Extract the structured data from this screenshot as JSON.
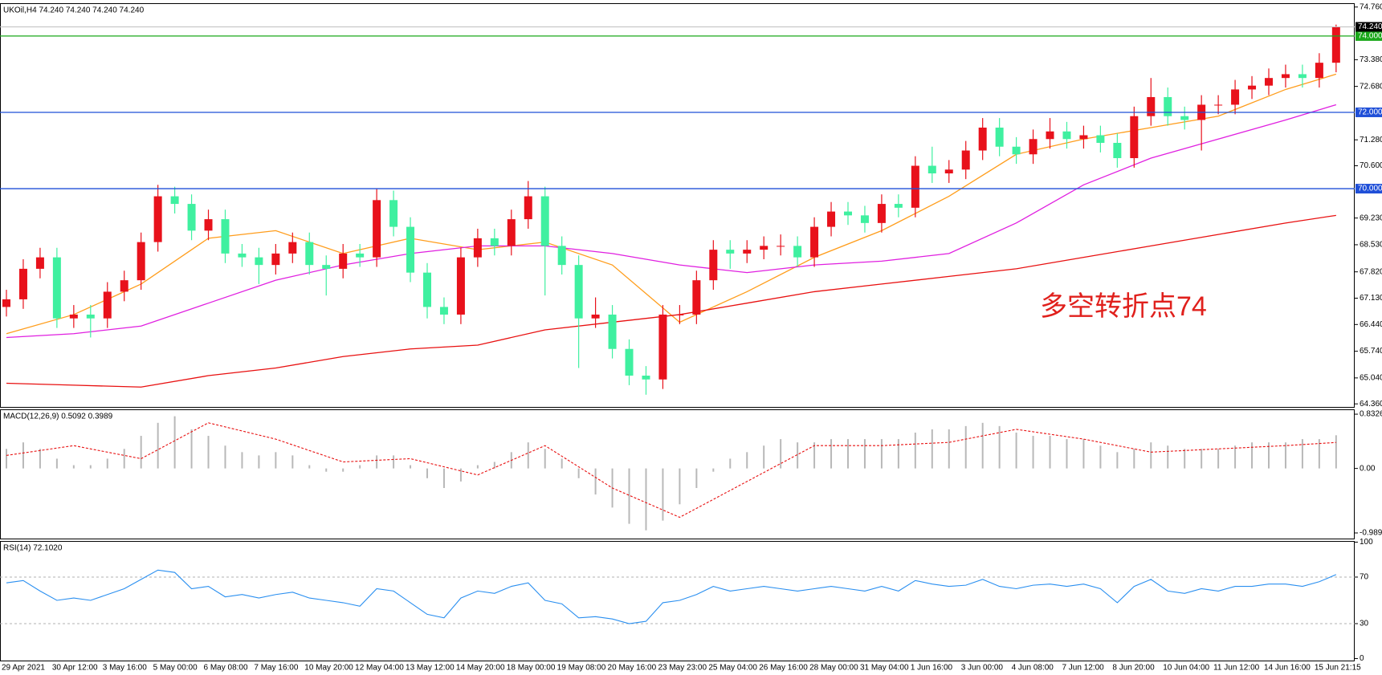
{
  "chart_data": [
    {
      "type": "candlestick",
      "title": "UKOil,H4  74.240 74.240 74.240 74.240",
      "categories": [
        "29 Apr 2021",
        null,
        null,
        "30 Apr 12:00",
        null,
        null,
        "3 May 16:00",
        null,
        null,
        "5 May 00:00",
        null,
        null,
        "6 May 08:00",
        null,
        null,
        "7 May 16:00",
        null,
        null,
        "10 May 20:00",
        null,
        null,
        "12 May 04:00",
        null,
        null,
        "13 May 12:00",
        null,
        null,
        "14 May 20:00",
        null,
        null,
        "18 May 00:00",
        null,
        null,
        "19 May 08:00",
        null,
        null,
        "20 May 16:00",
        null,
        null,
        "23 May 23:00",
        null,
        null,
        "25 May 04:00",
        null,
        null,
        "26 May 16:00",
        null,
        null,
        "28 May 00:00",
        null,
        null,
        "31 May 04:00",
        null,
        null,
        "1 Jun 16:00",
        null,
        null,
        "3 Jun 00:00",
        null,
        null,
        "4 Jun 08:00",
        null,
        null,
        "7 Jun 12:00",
        null,
        null,
        "8 Jun 20:00",
        null,
        null,
        "10 Jun 04:00",
        null,
        null,
        "11 Jun 12:00",
        null,
        null,
        "14 Jun 16:00",
        null,
        null,
        "15 Jun 21:15",
        null
      ],
      "open": [
        66.9,
        67.1,
        67.9,
        68.2,
        66.6,
        66.7,
        66.6,
        67.3,
        67.6,
        68.6,
        69.8,
        69.6,
        68.9,
        69.2,
        68.3,
        68.2,
        68.0,
        68.3,
        68.6,
        68.0,
        67.9,
        68.3,
        68.2,
        69.7,
        69.0,
        67.8,
        66.9,
        66.7,
        68.2,
        68.7,
        68.5,
        69.2,
        69.8,
        68.5,
        68.0,
        66.6,
        66.7,
        65.8,
        65.1,
        65.0,
        66.7,
        66.7,
        67.6,
        68.4,
        68.3,
        68.4,
        68.5,
        68.5,
        68.2,
        69.0,
        69.4,
        69.3,
        69.1,
        69.6,
        69.5,
        70.6,
        70.4,
        70.5,
        71.0,
        71.6,
        71.1,
        70.9,
        71.3,
        71.5,
        71.3,
        71.4,
        71.2,
        70.8,
        71.9,
        72.4,
        71.9,
        71.8,
        72.2,
        72.2,
        72.6,
        72.7,
        72.9,
        73.0,
        72.9,
        73.3
      ],
      "high": [
        67.35,
        68.15,
        68.45,
        68.45,
        66.95,
        66.95,
        67.55,
        67.85,
        68.85,
        70.1,
        70.05,
        69.85,
        69.45,
        69.45,
        68.55,
        68.45,
        68.55,
        68.85,
        68.85,
        68.25,
        68.55,
        68.55,
        70.0,
        69.95,
        69.25,
        68.05,
        67.15,
        68.45,
        68.95,
        68.95,
        69.45,
        70.2,
        70.05,
        68.75,
        68.25,
        67.15,
        66.95,
        66.05,
        65.35,
        66.95,
        66.95,
        67.85,
        68.65,
        68.65,
        68.65,
        68.75,
        68.8,
        68.75,
        69.25,
        69.65,
        69.65,
        69.55,
        69.85,
        69.85,
        70.85,
        71.1,
        70.75,
        71.25,
        71.85,
        71.85,
        71.35,
        71.55,
        71.85,
        71.75,
        71.65,
        71.65,
        71.45,
        72.15,
        72.9,
        72.65,
        72.15,
        72.45,
        72.45,
        72.85,
        72.95,
        73.15,
        73.25,
        73.25,
        73.55,
        74.3
      ],
      "low": [
        66.65,
        66.85,
        67.65,
        66.35,
        66.35,
        66.1,
        66.35,
        67.05,
        67.35,
        68.35,
        69.35,
        68.65,
        68.65,
        68.05,
        67.95,
        67.5,
        67.75,
        68.05,
        67.75,
        67.2,
        67.65,
        67.95,
        67.95,
        68.75,
        67.55,
        66.6,
        66.45,
        66.45,
        67.95,
        68.25,
        68.25,
        68.95,
        67.2,
        67.75,
        65.3,
        66.35,
        65.55,
        64.85,
        64.6,
        64.75,
        66.45,
        66.45,
        67.35,
        67.9,
        68.05,
        68.15,
        68.25,
        67.95,
        67.95,
        68.75,
        69.05,
        68.85,
        68.85,
        69.25,
        69.25,
        70.15,
        70.15,
        70.25,
        70.75,
        70.85,
        70.65,
        70.65,
        71.05,
        71.05,
        71.05,
        70.95,
        70.55,
        70.55,
        71.65,
        71.65,
        71.55,
        71.0,
        71.95,
        71.95,
        72.35,
        72.45,
        72.65,
        72.65,
        72.65,
        73.05
      ],
      "close": [
        67.1,
        67.9,
        68.2,
        66.6,
        66.7,
        66.6,
        67.3,
        67.6,
        68.6,
        69.8,
        69.6,
        68.9,
        69.2,
        68.3,
        68.2,
        68.0,
        68.3,
        68.6,
        68.0,
        67.9,
        68.3,
        68.2,
        69.7,
        69.0,
        67.8,
        66.9,
        66.7,
        68.2,
        68.7,
        68.5,
        69.2,
        69.8,
        68.5,
        68.0,
        66.6,
        66.7,
        65.8,
        65.1,
        65.0,
        66.7,
        66.7,
        67.6,
        68.4,
        68.3,
        68.4,
        68.5,
        68.5,
        68.2,
        69.0,
        69.4,
        69.3,
        69.1,
        69.6,
        69.5,
        70.6,
        70.4,
        70.5,
        71.0,
        71.6,
        71.1,
        70.9,
        71.3,
        71.5,
        71.3,
        71.4,
        71.2,
        70.8,
        71.9,
        72.4,
        71.9,
        71.8,
        72.2,
        72.2,
        72.6,
        72.7,
        72.9,
        73.0,
        72.9,
        73.3,
        74.24
      ],
      "up_color": "#e8111b",
      "down_color": "#3ff0a0",
      "lines": [
        {
          "color": "#ff9d1c",
          "x": [
            0,
            4,
            8,
            12,
            16,
            20,
            24,
            28,
            32,
            36,
            40,
            44,
            48,
            52,
            56,
            60,
            64,
            68,
            72,
            76,
            79
          ],
          "values": [
            66.2,
            66.7,
            67.5,
            68.7,
            68.9,
            68.3,
            68.7,
            68.4,
            68.6,
            68.0,
            66.5,
            67.3,
            68.2,
            68.9,
            69.8,
            70.9,
            71.3,
            71.6,
            71.9,
            72.6,
            73.0
          ]
        },
        {
          "color": "#e020e0",
          "x": [
            0,
            4,
            8,
            12,
            16,
            20,
            24,
            28,
            32,
            36,
            40,
            44,
            48,
            52,
            56,
            60,
            64,
            68,
            72,
            76,
            79
          ],
          "values": [
            66.1,
            66.2,
            66.4,
            67.0,
            67.6,
            68.0,
            68.3,
            68.5,
            68.5,
            68.3,
            68.0,
            67.8,
            68.0,
            68.1,
            68.3,
            69.1,
            70.1,
            70.8,
            71.3,
            71.8,
            72.2
          ]
        },
        {
          "color": "#e81010",
          "x": [
            0,
            4,
            8,
            12,
            16,
            20,
            24,
            28,
            32,
            36,
            40,
            44,
            48,
            52,
            56,
            60,
            64,
            68,
            72,
            76,
            79
          ],
          "values": [
            64.9,
            64.85,
            64.8,
            65.1,
            65.3,
            65.6,
            65.8,
            65.9,
            66.3,
            66.5,
            66.7,
            67.0,
            67.3,
            67.5,
            67.7,
            67.9,
            68.2,
            68.5,
            68.8,
            69.1,
            69.3
          ]
        }
      ],
      "ylim": [
        64.28,
        74.86
      ],
      "yticks": [
        {
          "value": 74.76,
          "label": "74.760"
        },
        {
          "value": 73.38,
          "label": "73.380"
        },
        {
          "value": 72.68,
          "label": "72.680"
        },
        {
          "value": 71.28,
          "label": "71.280"
        },
        {
          "value": 70.6,
          "label": "70.600"
        },
        {
          "value": 69.23,
          "label": "69.230"
        },
        {
          "value": 68.53,
          "label": "68.530"
        },
        {
          "value": 67.82,
          "label": "67.820"
        },
        {
          "value": 67.13,
          "label": "67.130"
        },
        {
          "value": 66.44,
          "label": "66.440"
        },
        {
          "value": 65.74,
          "label": "65.740"
        },
        {
          "value": 65.04,
          "label": "65.040"
        },
        {
          "value": 64.36,
          "label": "64.360"
        }
      ],
      "levels": [
        {
          "value": 74,
          "label": "74.000",
          "color": "#1aa81a"
        },
        {
          "value": 72,
          "label": "72.000",
          "color": "#1f4fd8"
        },
        {
          "value": 70,
          "label": "70.000",
          "color": "#1f4fd8"
        }
      ],
      "current_price": {
        "value": 74.24,
        "label": "74.240",
        "color": "#000000"
      },
      "annotation": {
        "text": "多空转折点74",
        "color": "#e0201c"
      }
    },
    {
      "type": "macd",
      "title": "MACD(12,26,9) 0.5092 0.3989",
      "histogram": [
        0.3,
        0.4,
        0.3,
        0.15,
        0.05,
        0.05,
        0.15,
        0.3,
        0.5,
        0.7,
        0.8,
        0.6,
        0.5,
        0.35,
        0.25,
        0.2,
        0.25,
        0.2,
        0.05,
        -0.05,
        -0.05,
        0.05,
        0.2,
        0.2,
        0.05,
        -0.15,
        -0.3,
        -0.2,
        0.05,
        0.1,
        0.25,
        0.4,
        0.3,
        0.15,
        -0.15,
        -0.4,
        -0.6,
        -0.85,
        -0.95,
        -0.8,
        -0.55,
        -0.3,
        -0.05,
        0.15,
        0.25,
        0.35,
        0.45,
        0.4,
        0.4,
        0.45,
        0.45,
        0.45,
        0.45,
        0.45,
        0.55,
        0.6,
        0.6,
        0.65,
        0.7,
        0.65,
        0.55,
        0.5,
        0.5,
        0.45,
        0.45,
        0.35,
        0.25,
        0.3,
        0.4,
        0.35,
        0.3,
        0.3,
        0.3,
        0.35,
        0.4,
        0.4,
        0.4,
        0.45,
        0.45,
        0.5092
      ],
      "histogram_color": "#b8b8b8",
      "signal": {
        "color": "#e81010",
        "x": [
          0,
          4,
          8,
          12,
          16,
          20,
          24,
          28,
          32,
          36,
          40,
          44,
          48,
          52,
          56,
          60,
          64,
          68,
          72,
          76,
          79
        ],
        "values": [
          0.2,
          0.35,
          0.15,
          0.7,
          0.45,
          0.1,
          0.15,
          -0.1,
          0.35,
          -0.3,
          -0.75,
          -0.2,
          0.35,
          0.35,
          0.4,
          0.6,
          0.45,
          0.25,
          0.3,
          0.35,
          0.3989
        ]
      },
      "ylim": [
        -1.076,
        0.907
      ],
      "yticks": [
        0.8326,
        {
          "value": 0,
          "label": "0.00"
        },
        -0.9897
      ]
    },
    {
      "type": "line",
      "title": "RSI(14) 72.1020",
      "values": [
        65,
        67,
        58,
        50,
        52,
        50,
        55,
        60,
        68,
        76,
        74,
        60,
        62,
        53,
        55,
        52,
        55,
        57,
        52,
        50,
        48,
        45,
        60,
        58,
        48,
        38,
        35,
        52,
        58,
        56,
        62,
        65,
        50,
        47,
        35,
        36,
        34,
        30,
        32,
        48,
        50,
        55,
        62,
        58,
        60,
        62,
        60,
        58,
        60,
        62,
        60,
        58,
        62,
        58,
        67,
        64,
        62,
        63,
        68,
        62,
        60,
        63,
        64,
        62,
        64,
        60,
        48,
        62,
        68,
        58,
        56,
        60,
        58,
        62,
        62,
        64,
        64,
        62,
        66,
        72.102
      ],
      "color": "#2a8ff0",
      "ylim": [
        -1.7,
        101
      ],
      "yticks": [
        100,
        70,
        30,
        0
      ],
      "levels": [
        70,
        30
      ]
    }
  ]
}
